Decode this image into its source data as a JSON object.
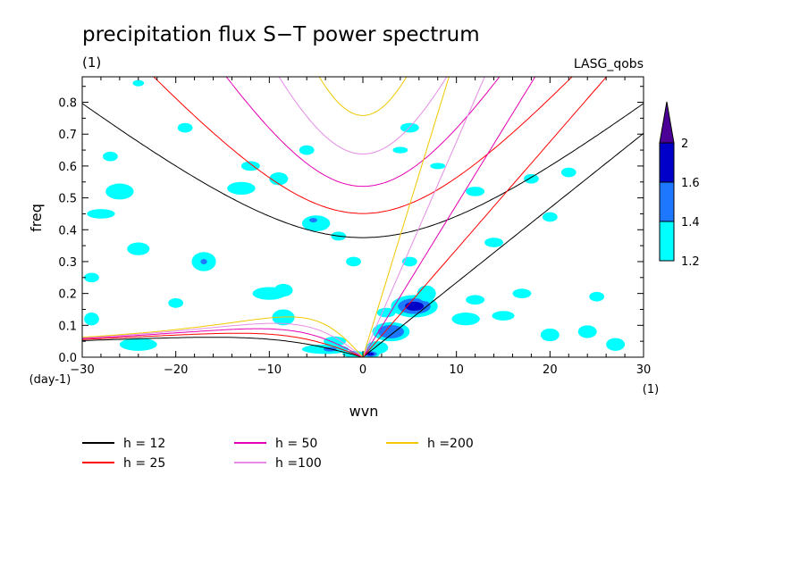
{
  "chart_data": {
    "type": "heatmap",
    "title": "precipitation flux S−T power spectrum",
    "subtitle_left": "(1)",
    "subtitle_right": "LASG_qobs",
    "xlabel": "wvn",
    "ylabel": "freq",
    "x_unit_label": "(1)",
    "y_unit_label": "(day-1)",
    "xlim": [
      -30,
      30
    ],
    "ylim": [
      0,
      0.88
    ],
    "x_ticks": [
      -30,
      -20,
      -10,
      0,
      10,
      20,
      30
    ],
    "x_tick_labels": [
      "−30",
      "−20",
      "−10",
      "0",
      "10",
      "20",
      "30"
    ],
    "y_ticks": [
      0,
      0.1,
      0.2,
      0.3,
      0.4,
      0.5,
      0.6,
      0.7,
      0.8
    ],
    "y_tick_labels": [
      "0.0",
      "0.1",
      "0.2",
      "0.3",
      "0.4",
      "0.5",
      "0.6",
      "0.7",
      "0.8"
    ],
    "colorbar": {
      "levels": [
        1.2,
        1.4,
        1.6,
        2
      ],
      "labels": [
        "1.2",
        "1.4",
        "1.6",
        "2"
      ],
      "colors": [
        "#00ffff",
        "#1e78ff",
        "#0000c8",
        "#4b0096"
      ],
      "extend": "max"
    },
    "dispersion_curves": [
      {
        "name": "h = 12",
        "h": 12,
        "color": "#000000"
      },
      {
        "name": "h = 25",
        "h": 25,
        "color": "#ff0000"
      },
      {
        "name": "h = 50",
        "h": 50,
        "color": "#e600b4"
      },
      {
        "name": "h =100",
        "h": 100,
        "color": "#e68ce6"
      },
      {
        "name": "h =200",
        "h": 200,
        "color": "#f0c800"
      }
    ],
    "power_patches": [
      {
        "k": 5.5,
        "f": 0.16,
        "rk": 2.5,
        "rf": 0.035,
        "level": 3
      },
      {
        "k": 3.0,
        "f": 0.08,
        "rk": 2.0,
        "rf": 0.03,
        "level": 2
      },
      {
        "k": 1.5,
        "f": 0.03,
        "rk": 1.2,
        "rf": 0.02,
        "level": 1
      },
      {
        "k": 6.8,
        "f": 0.2,
        "rk": 1.0,
        "rf": 0.025,
        "level": 1
      },
      {
        "k": 0.8,
        "f": 0.01,
        "rk": 1.0,
        "rf": 0.012,
        "level": 3
      },
      {
        "k": -4.0,
        "f": 0.025,
        "rk": 2.5,
        "rf": 0.015,
        "level": 1
      },
      {
        "k": -3.5,
        "f": 0.025,
        "rk": 1.0,
        "rf": 0.01,
        "level": 2
      },
      {
        "k": -8.5,
        "f": 0.125,
        "rk": 1.2,
        "rf": 0.025,
        "level": 1
      },
      {
        "k": -5.0,
        "f": 0.42,
        "rk": 1.5,
        "rf": 0.025,
        "level": 1
      },
      {
        "k": -5.3,
        "f": 0.43,
        "rk": 0.6,
        "rf": 0.01,
        "level": 2
      },
      {
        "k": -2.6,
        "f": 0.38,
        "rk": 0.8,
        "rf": 0.014,
        "level": 1
      },
      {
        "k": -17.0,
        "f": 0.3,
        "rk": 1.3,
        "rf": 0.03,
        "level": 1
      },
      {
        "k": -17.0,
        "f": 0.3,
        "rk": 0.5,
        "rf": 0.012,
        "level": 2
      },
      {
        "k": -10.0,
        "f": 0.2,
        "rk": 1.8,
        "rf": 0.02,
        "level": 1
      },
      {
        "k": -8.5,
        "f": 0.21,
        "rk": 1.0,
        "rf": 0.02,
        "level": 1
      },
      {
        "k": -26.0,
        "f": 0.52,
        "rk": 1.5,
        "rf": 0.025,
        "level": 1
      },
      {
        "k": -28.0,
        "f": 0.45,
        "rk": 1.5,
        "rf": 0.015,
        "level": 1
      },
      {
        "k": -24.0,
        "f": 0.34,
        "rk": 1.2,
        "rf": 0.02,
        "level": 1
      },
      {
        "k": -13.0,
        "f": 0.53,
        "rk": 1.5,
        "rf": 0.02,
        "level": 1
      },
      {
        "k": -9.0,
        "f": 0.56,
        "rk": 1.0,
        "rf": 0.02,
        "level": 1
      },
      {
        "k": -12.0,
        "f": 0.6,
        "rk": 1.0,
        "rf": 0.015,
        "level": 1
      },
      {
        "k": -19.0,
        "f": 0.72,
        "rk": 0.8,
        "rf": 0.015,
        "level": 1
      },
      {
        "k": 5.0,
        "f": 0.72,
        "rk": 1.0,
        "rf": 0.015,
        "level": 1
      },
      {
        "k": 12.0,
        "f": 0.52,
        "rk": 1.0,
        "rf": 0.015,
        "level": 1
      },
      {
        "k": 14.0,
        "f": 0.36,
        "rk": 1.0,
        "rf": 0.015,
        "level": 1
      },
      {
        "k": 11.0,
        "f": 0.12,
        "rk": 1.5,
        "rf": 0.02,
        "level": 1
      },
      {
        "k": 15.0,
        "f": 0.13,
        "rk": 1.2,
        "rf": 0.015,
        "level": 1
      },
      {
        "k": 12.0,
        "f": 0.18,
        "rk": 1.0,
        "rf": 0.015,
        "level": 1
      },
      {
        "k": 17.0,
        "f": 0.2,
        "rk": 1.0,
        "rf": 0.015,
        "level": 1
      },
      {
        "k": 20.0,
        "f": 0.07,
        "rk": 1.0,
        "rf": 0.02,
        "level": 1
      },
      {
        "k": 24.0,
        "f": 0.08,
        "rk": 1.0,
        "rf": 0.02,
        "level": 1
      },
      {
        "k": 25.0,
        "f": 0.19,
        "rk": 0.8,
        "rf": 0.015,
        "level": 1
      },
      {
        "k": 27.0,
        "f": 0.04,
        "rk": 1.0,
        "rf": 0.02,
        "level": 1
      },
      {
        "k": -24.0,
        "f": 0.04,
        "rk": 2.0,
        "rf": 0.02,
        "level": 1
      },
      {
        "k": -29.0,
        "f": 0.12,
        "rk": 0.8,
        "rf": 0.02,
        "level": 1
      },
      {
        "k": -20.0,
        "f": 0.17,
        "rk": 0.8,
        "rf": 0.015,
        "level": 1
      },
      {
        "k": -29.0,
        "f": 0.25,
        "rk": 0.8,
        "rf": 0.015,
        "level": 1
      },
      {
        "k": -27.0,
        "f": 0.63,
        "rk": 0.8,
        "rf": 0.015,
        "level": 1
      },
      {
        "k": -24.0,
        "f": 0.86,
        "rk": 0.6,
        "rf": 0.01,
        "level": 1
      },
      {
        "k": 4.0,
        "f": 0.65,
        "rk": 0.8,
        "rf": 0.01,
        "level": 1
      },
      {
        "k": 8.0,
        "f": 0.6,
        "rk": 0.8,
        "rf": 0.01,
        "level": 1
      },
      {
        "k": 20.0,
        "f": 0.44,
        "rk": 0.8,
        "rf": 0.015,
        "level": 1
      },
      {
        "k": 18.0,
        "f": 0.56,
        "rk": 0.8,
        "rf": 0.015,
        "level": 1
      },
      {
        "k": 22.0,
        "f": 0.58,
        "rk": 0.8,
        "rf": 0.015,
        "level": 1
      },
      {
        "k": 5.0,
        "f": 0.3,
        "rk": 0.8,
        "rf": 0.015,
        "level": 1
      },
      {
        "k": -1.0,
        "f": 0.3,
        "rk": 0.8,
        "rf": 0.015,
        "level": 1
      },
      {
        "k": -6.0,
        "f": 0.65,
        "rk": 0.8,
        "rf": 0.015,
        "level": 1
      },
      {
        "k": -3.0,
        "f": 0.05,
        "rk": 1.2,
        "rf": 0.015,
        "level": 1
      },
      {
        "k": -1.0,
        "f": 0.01,
        "rk": 1.2,
        "rf": 0.01,
        "level": 1
      },
      {
        "k": 2.5,
        "f": 0.14,
        "rk": 1.0,
        "rf": 0.015,
        "level": 1
      }
    ]
  }
}
